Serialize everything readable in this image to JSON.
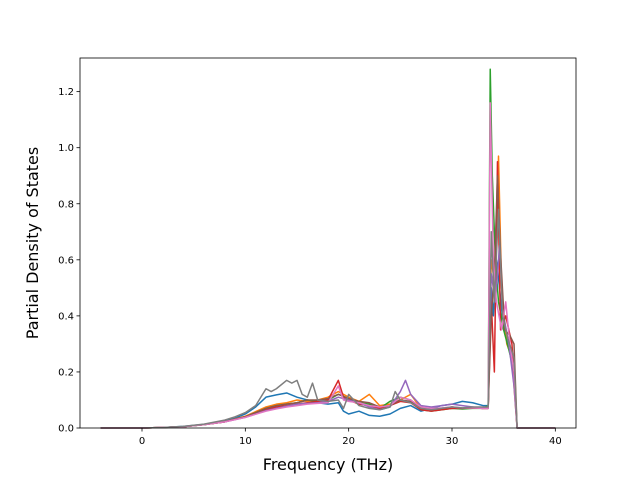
{
  "chart_data": {
    "type": "line",
    "title": "",
    "xlabel": "Frequency (THz)",
    "ylabel": "Partial Density of States",
    "xlim": [
      -6,
      42
    ],
    "ylim": [
      0,
      1.32
    ],
    "x_ticks": [
      0,
      10,
      20,
      30,
      40
    ],
    "y_ticks": [
      0.0,
      0.2,
      0.4,
      0.6,
      0.8,
      1.0,
      1.2
    ],
    "x_tick_labels": [
      "0",
      "10",
      "20",
      "30",
      "40"
    ],
    "y_tick_labels": [
      "0.0",
      "0.2",
      "0.4",
      "0.6",
      "0.8",
      "1.0",
      "1.2"
    ],
    "grid": false,
    "legend": "none",
    "series": [
      {
        "color": "#1f77b4",
        "points": [
          [
            -4,
            0
          ],
          [
            0,
            0
          ],
          [
            2,
            0.002
          ],
          [
            4,
            0.006
          ],
          [
            6,
            0.013
          ],
          [
            8,
            0.025
          ],
          [
            9,
            0.035
          ],
          [
            10,
            0.05
          ],
          [
            11,
            0.075
          ],
          [
            12,
            0.11
          ],
          [
            13,
            0.118
          ],
          [
            14,
            0.125
          ],
          [
            15,
            0.11
          ],
          [
            16,
            0.1
          ],
          [
            17,
            0.09
          ],
          [
            18,
            0.085
          ],
          [
            19,
            0.09
          ],
          [
            19.5,
            0.06
          ],
          [
            20,
            0.05
          ],
          [
            21,
            0.06
          ],
          [
            22,
            0.045
          ],
          [
            23,
            0.042
          ],
          [
            24,
            0.05
          ],
          [
            25,
            0.07
          ],
          [
            26,
            0.08
          ],
          [
            27,
            0.06
          ],
          [
            28,
            0.07
          ],
          [
            29,
            0.08
          ],
          [
            30,
            0.085
          ],
          [
            31,
            0.095
          ],
          [
            32,
            0.09
          ],
          [
            33,
            0.08
          ],
          [
            33.5,
            0.08
          ],
          [
            33.8,
            0.5
          ],
          [
            34,
            0.4
          ],
          [
            34.3,
            0.6
          ],
          [
            34.6,
            0.5
          ],
          [
            35,
            0.35
          ],
          [
            35.5,
            0.3
          ],
          [
            36,
            0.2
          ],
          [
            36.3,
            0
          ],
          [
            40,
            0
          ]
        ]
      },
      {
        "color": "#ff7f0e",
        "points": [
          [
            -4,
            0
          ],
          [
            0,
            0
          ],
          [
            2,
            0.002
          ],
          [
            4,
            0.005
          ],
          [
            6,
            0.012
          ],
          [
            8,
            0.022
          ],
          [
            10,
            0.042
          ],
          [
            12,
            0.075
          ],
          [
            13,
            0.085
          ],
          [
            14,
            0.09
          ],
          [
            15,
            0.1
          ],
          [
            16,
            0.095
          ],
          [
            17,
            0.1
          ],
          [
            18,
            0.11
          ],
          [
            19,
            0.13
          ],
          [
            20,
            0.11
          ],
          [
            21,
            0.095
          ],
          [
            22,
            0.12
          ],
          [
            23,
            0.08
          ],
          [
            24,
            0.085
          ],
          [
            25,
            0.1
          ],
          [
            26,
            0.12
          ],
          [
            27,
            0.07
          ],
          [
            28,
            0.065
          ],
          [
            29,
            0.07
          ],
          [
            30,
            0.075
          ],
          [
            31,
            0.07
          ],
          [
            32,
            0.072
          ],
          [
            33,
            0.07
          ],
          [
            33.5,
            0.07
          ],
          [
            33.8,
            0.6
          ],
          [
            34.2,
            0.5
          ],
          [
            34.5,
            0.97
          ],
          [
            34.8,
            0.5
          ],
          [
            35.3,
            0.3
          ],
          [
            35.8,
            0.25
          ],
          [
            36.3,
            0
          ],
          [
            40,
            0
          ]
        ]
      },
      {
        "color": "#2ca02c",
        "points": [
          [
            -4,
            0
          ],
          [
            0,
            0
          ],
          [
            2,
            0.002
          ],
          [
            4,
            0.005
          ],
          [
            6,
            0.012
          ],
          [
            8,
            0.022
          ],
          [
            10,
            0.04
          ],
          [
            12,
            0.07
          ],
          [
            13,
            0.08
          ],
          [
            14,
            0.085
          ],
          [
            15,
            0.09
          ],
          [
            16,
            0.1
          ],
          [
            17,
            0.095
          ],
          [
            18,
            0.1
          ],
          [
            19,
            0.12
          ],
          [
            20,
            0.105
          ],
          [
            21,
            0.09
          ],
          [
            22,
            0.085
          ],
          [
            23,
            0.07
          ],
          [
            24,
            0.095
          ],
          [
            25,
            0.11
          ],
          [
            26,
            0.1
          ],
          [
            27,
            0.065
          ],
          [
            28,
            0.06
          ],
          [
            29,
            0.065
          ],
          [
            30,
            0.07
          ],
          [
            31,
            0.068
          ],
          [
            32,
            0.07
          ],
          [
            33,
            0.07
          ],
          [
            33.5,
            0.08
          ],
          [
            33.7,
            1.28
          ],
          [
            33.9,
            0.9
          ],
          [
            34.2,
            0.6
          ],
          [
            34.5,
            0.45
          ],
          [
            35,
            0.35
          ],
          [
            35.5,
            0.28
          ],
          [
            36,
            0.2
          ],
          [
            36.3,
            0
          ],
          [
            40,
            0
          ]
        ]
      },
      {
        "color": "#d62728",
        "points": [
          [
            -4,
            0
          ],
          [
            0,
            0
          ],
          [
            2,
            0.002
          ],
          [
            4,
            0.005
          ],
          [
            6,
            0.012
          ],
          [
            8,
            0.022
          ],
          [
            10,
            0.04
          ],
          [
            12,
            0.065
          ],
          [
            13,
            0.075
          ],
          [
            14,
            0.08
          ],
          [
            15,
            0.085
          ],
          [
            16,
            0.09
          ],
          [
            17,
            0.095
          ],
          [
            18,
            0.1
          ],
          [
            19,
            0.17
          ],
          [
            19.5,
            0.11
          ],
          [
            20,
            0.1
          ],
          [
            21,
            0.085
          ],
          [
            22,
            0.08
          ],
          [
            23,
            0.07
          ],
          [
            24,
            0.08
          ],
          [
            25,
            0.095
          ],
          [
            26,
            0.09
          ],
          [
            27,
            0.065
          ],
          [
            28,
            0.06
          ],
          [
            29,
            0.065
          ],
          [
            30,
            0.07
          ],
          [
            31,
            0.07
          ],
          [
            32,
            0.072
          ],
          [
            33,
            0.07
          ],
          [
            33.5,
            0.07
          ],
          [
            33.8,
            0.45
          ],
          [
            34.1,
            0.2
          ],
          [
            34.4,
            0.95
          ],
          [
            34.7,
            0.35
          ],
          [
            35.2,
            0.4
          ],
          [
            35.8,
            0.3
          ],
          [
            36.3,
            0
          ],
          [
            40,
            0
          ]
        ]
      },
      {
        "color": "#9467bd",
        "points": [
          [
            -4,
            0
          ],
          [
            0,
            0
          ],
          [
            2,
            0.002
          ],
          [
            4,
            0.005
          ],
          [
            6,
            0.012
          ],
          [
            8,
            0.022
          ],
          [
            10,
            0.038
          ],
          [
            12,
            0.062
          ],
          [
            13,
            0.07
          ],
          [
            14,
            0.078
          ],
          [
            15,
            0.085
          ],
          [
            16,
            0.088
          ],
          [
            17,
            0.09
          ],
          [
            18,
            0.095
          ],
          [
            19,
            0.11
          ],
          [
            20,
            0.1
          ],
          [
            21,
            0.09
          ],
          [
            22,
            0.075
          ],
          [
            23,
            0.065
          ],
          [
            24,
            0.075
          ],
          [
            25,
            0.13
          ],
          [
            25.5,
            0.17
          ],
          [
            26,
            0.12
          ],
          [
            27,
            0.08
          ],
          [
            28,
            0.075
          ],
          [
            29,
            0.08
          ],
          [
            30,
            0.085
          ],
          [
            31,
            0.08
          ],
          [
            32,
            0.075
          ],
          [
            33,
            0.07
          ],
          [
            33.5,
            0.07
          ],
          [
            33.8,
            0.55
          ],
          [
            34.2,
            0.45
          ],
          [
            34.6,
            0.65
          ],
          [
            35,
            0.4
          ],
          [
            35.5,
            0.3
          ],
          [
            36,
            0.15
          ],
          [
            36.3,
            0
          ],
          [
            40,
            0
          ]
        ]
      },
      {
        "color": "#8c564b",
        "points": [
          [
            -4,
            0
          ],
          [
            0,
            0
          ],
          [
            2,
            0.002
          ],
          [
            4,
            0.005
          ],
          [
            6,
            0.012
          ],
          [
            8,
            0.022
          ],
          [
            10,
            0.04
          ],
          [
            12,
            0.07
          ],
          [
            13,
            0.08
          ],
          [
            14,
            0.085
          ],
          [
            15,
            0.09
          ],
          [
            16,
            0.1
          ],
          [
            17,
            0.1
          ],
          [
            18,
            0.105
          ],
          [
            19,
            0.12
          ],
          [
            20,
            0.105
          ],
          [
            21,
            0.095
          ],
          [
            22,
            0.09
          ],
          [
            23,
            0.075
          ],
          [
            24,
            0.08
          ],
          [
            25,
            0.1
          ],
          [
            26,
            0.095
          ],
          [
            27,
            0.07
          ],
          [
            28,
            0.065
          ],
          [
            29,
            0.07
          ],
          [
            30,
            0.075
          ],
          [
            31,
            0.07
          ],
          [
            32,
            0.072
          ],
          [
            33,
            0.07
          ],
          [
            33.5,
            0.07
          ],
          [
            33.8,
            0.4
          ],
          [
            34.1,
            0.55
          ],
          [
            34.4,
            0.9
          ],
          [
            34.7,
            0.62
          ],
          [
            35.1,
            0.35
          ],
          [
            35.6,
            0.33
          ],
          [
            36,
            0.3
          ],
          [
            36.3,
            0
          ],
          [
            40,
            0
          ]
        ]
      },
      {
        "color": "#e377c2",
        "points": [
          [
            -4,
            0
          ],
          [
            0,
            0
          ],
          [
            2,
            0.002
          ],
          [
            4,
            0.005
          ],
          [
            6,
            0.012
          ],
          [
            8,
            0.022
          ],
          [
            10,
            0.038
          ],
          [
            12,
            0.06
          ],
          [
            13,
            0.068
          ],
          [
            14,
            0.075
          ],
          [
            15,
            0.08
          ],
          [
            16,
            0.085
          ],
          [
            17,
            0.088
          ],
          [
            18,
            0.09
          ],
          [
            19,
            0.15
          ],
          [
            19.5,
            0.1
          ],
          [
            20,
            0.095
          ],
          [
            21,
            0.09
          ],
          [
            22,
            0.08
          ],
          [
            23,
            0.075
          ],
          [
            24,
            0.08
          ],
          [
            25,
            0.11
          ],
          [
            26,
            0.1
          ],
          [
            27,
            0.075
          ],
          [
            28,
            0.07
          ],
          [
            29,
            0.072
          ],
          [
            30,
            0.075
          ],
          [
            31,
            0.072
          ],
          [
            32,
            0.072
          ],
          [
            33,
            0.07
          ],
          [
            33.5,
            0.07
          ],
          [
            33.7,
            1.16
          ],
          [
            34,
            0.6
          ],
          [
            34.3,
            0.45
          ],
          [
            34.8,
            0.35
          ],
          [
            35.2,
            0.45
          ],
          [
            35.6,
            0.3
          ],
          [
            36,
            0.2
          ],
          [
            36.3,
            0
          ],
          [
            40,
            0
          ]
        ]
      },
      {
        "color": "#7f7f7f",
        "points": [
          [
            -4,
            0
          ],
          [
            0,
            0
          ],
          [
            2,
            0.002
          ],
          [
            4,
            0.006
          ],
          [
            6,
            0.014
          ],
          [
            8,
            0.028
          ],
          [
            9,
            0.04
          ],
          [
            10,
            0.055
          ],
          [
            11,
            0.08
          ],
          [
            12,
            0.14
          ],
          [
            12.5,
            0.13
          ],
          [
            13,
            0.14
          ],
          [
            14,
            0.17
          ],
          [
            14.5,
            0.16
          ],
          [
            15,
            0.17
          ],
          [
            15.5,
            0.12
          ],
          [
            16,
            0.11
          ],
          [
            16.5,
            0.16
          ],
          [
            17,
            0.1
          ],
          [
            18,
            0.095
          ],
          [
            19,
            0.1
          ],
          [
            19.5,
            0.07
          ],
          [
            20,
            0.12
          ],
          [
            21,
            0.08
          ],
          [
            22,
            0.07
          ],
          [
            23,
            0.065
          ],
          [
            24,
            0.075
          ],
          [
            24.5,
            0.13
          ],
          [
            25,
            0.1
          ],
          [
            26,
            0.09
          ],
          [
            27,
            0.07
          ],
          [
            28,
            0.065
          ],
          [
            29,
            0.07
          ],
          [
            30,
            0.075
          ],
          [
            31,
            0.072
          ],
          [
            32,
            0.075
          ],
          [
            33,
            0.075
          ],
          [
            33.5,
            0.075
          ],
          [
            33.8,
            0.7
          ],
          [
            34.1,
            0.45
          ],
          [
            34.5,
            0.78
          ],
          [
            34.9,
            0.4
          ],
          [
            35.4,
            0.32
          ],
          [
            36,
            0.25
          ],
          [
            36.3,
            0
          ],
          [
            40,
            0
          ]
        ]
      }
    ]
  }
}
